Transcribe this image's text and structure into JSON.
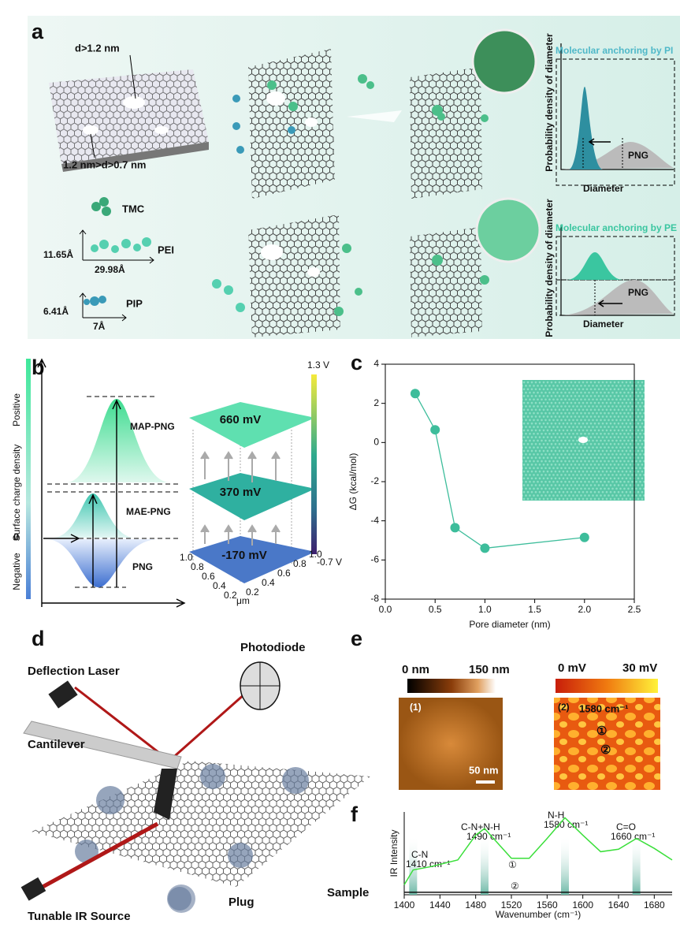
{
  "panels": {
    "a": {
      "label": "a",
      "pore_large": "d>1.2 nm",
      "pore_small": "1.2 nm>d>0.7 nm",
      "tmc": "TMC",
      "pei": "PEI",
      "pei_height": "11.65Å",
      "pei_width": "29.98Å",
      "pip": "PIP",
      "pip_height": "6.41Å",
      "pip_width": "7Å",
      "top_title": "Molecular anchoring by PI",
      "bottom_title": "Molecular anchoring by PE",
      "y_label": "Probability density of diameter",
      "x_label": "Diameter",
      "png": "PNG"
    },
    "b": {
      "label": "b",
      "positive": "Positive",
      "y_label": "Surface charge density",
      "negative": "Negative",
      "zero": "0",
      "map": "MAP-PNG",
      "mae": "MAE-PNG",
      "png": "PNG",
      "v_top": "660 mV",
      "v_mid": "370 mV",
      "v_low": "-170 mV",
      "cbar_max": "1.3 V",
      "cbar_min": "-0.7 V",
      "left_ticks": [
        "1.0",
        "0.8",
        "0.6",
        "0.4",
        "0.2"
      ],
      "right_ticks": [
        "0.2",
        "0.4",
        "0.6",
        "0.8",
        "1.0"
      ],
      "unit": "μm"
    },
    "c": {
      "label": "c"
    },
    "d": {
      "label": "d",
      "laser": "Deflection Laser",
      "photodiode": "Photodiode",
      "cantilever": "Cantilever",
      "sample": "Sample",
      "plug": "Plug",
      "source": "Tunable IR Source"
    },
    "e": {
      "label": "e",
      "h_min": "0 nm",
      "h_max": "150 nm",
      "p_min": "0 mV",
      "p_max": "30 mV",
      "img1": "(1)",
      "img2": "(2)",
      "wavenumber": "1580 cm⁻¹",
      "spot1": "①",
      "spot2": "②",
      "scale": "50 nm"
    },
    "f": {
      "label": "f"
    }
  },
  "chart_data": [
    {
      "type": "line",
      "x_label": "Pore diameter (nm)",
      "y_label": "ΔG (kcal/mol)",
      "x": [
        0.3,
        0.5,
        0.7,
        1.0,
        2.0
      ],
      "series": [
        {
          "name": "ΔG",
          "color": "#3dbd9b",
          "values": [
            2.5,
            0.65,
            -4.35,
            -5.4,
            -4.85
          ]
        }
      ],
      "xlim": [
        0,
        2.5
      ],
      "xticks": [
        {
          "value": 0,
          "label": "0.0"
        },
        0.5,
        {
          "value": 1,
          "label": "1.0"
        },
        1.5,
        {
          "value": 2,
          "label": "2.0"
        },
        2.5
      ],
      "ylim": [
        -8,
        4
      ],
      "yticks": [
        -8,
        -6,
        -4,
        -2,
        0,
        2,
        4
      ]
    },
    {
      "type": "line",
      "x_label": "Wavenumber (cm⁻¹)",
      "y_label": "IR Intensity",
      "x": [
        1400,
        1410,
        1430,
        1460,
        1480,
        1490,
        1500,
        1520,
        1540,
        1560,
        1580,
        1600,
        1620,
        1640,
        1660,
        1680,
        1700
      ],
      "series": [
        {
          "name": "①",
          "color": "#3adf3a",
          "values": [
            0.12,
            0.3,
            0.34,
            0.42,
            0.72,
            0.8,
            0.68,
            0.44,
            0.44,
            0.68,
            0.93,
            0.72,
            0.52,
            0.55,
            0.68,
            0.56,
            0.42
          ]
        },
        {
          "name": "②",
          "color": "#111111",
          "values": [
            0.03,
            0.03,
            0.03,
            0.03,
            0.03,
            0.03,
            0.03,
            0.03,
            0.03,
            0.03,
            0.03,
            0.03,
            0.03,
            0.03,
            0.03,
            0.03,
            0.03
          ]
        }
      ],
      "annotations": [
        "C-N",
        "1410 cm⁻¹",
        "C-N+N-H",
        "1490 cm⁻¹",
        "N-H",
        "1580 cm⁻¹",
        "C=O",
        "1660 cm⁻¹"
      ],
      "xlim": [
        1400,
        1700
      ],
      "xticks": [
        1400,
        1440,
        1480,
        1520,
        1560,
        1600,
        1640,
        1680
      ],
      "ylim": [
        0,
        1
      ]
    }
  ]
}
